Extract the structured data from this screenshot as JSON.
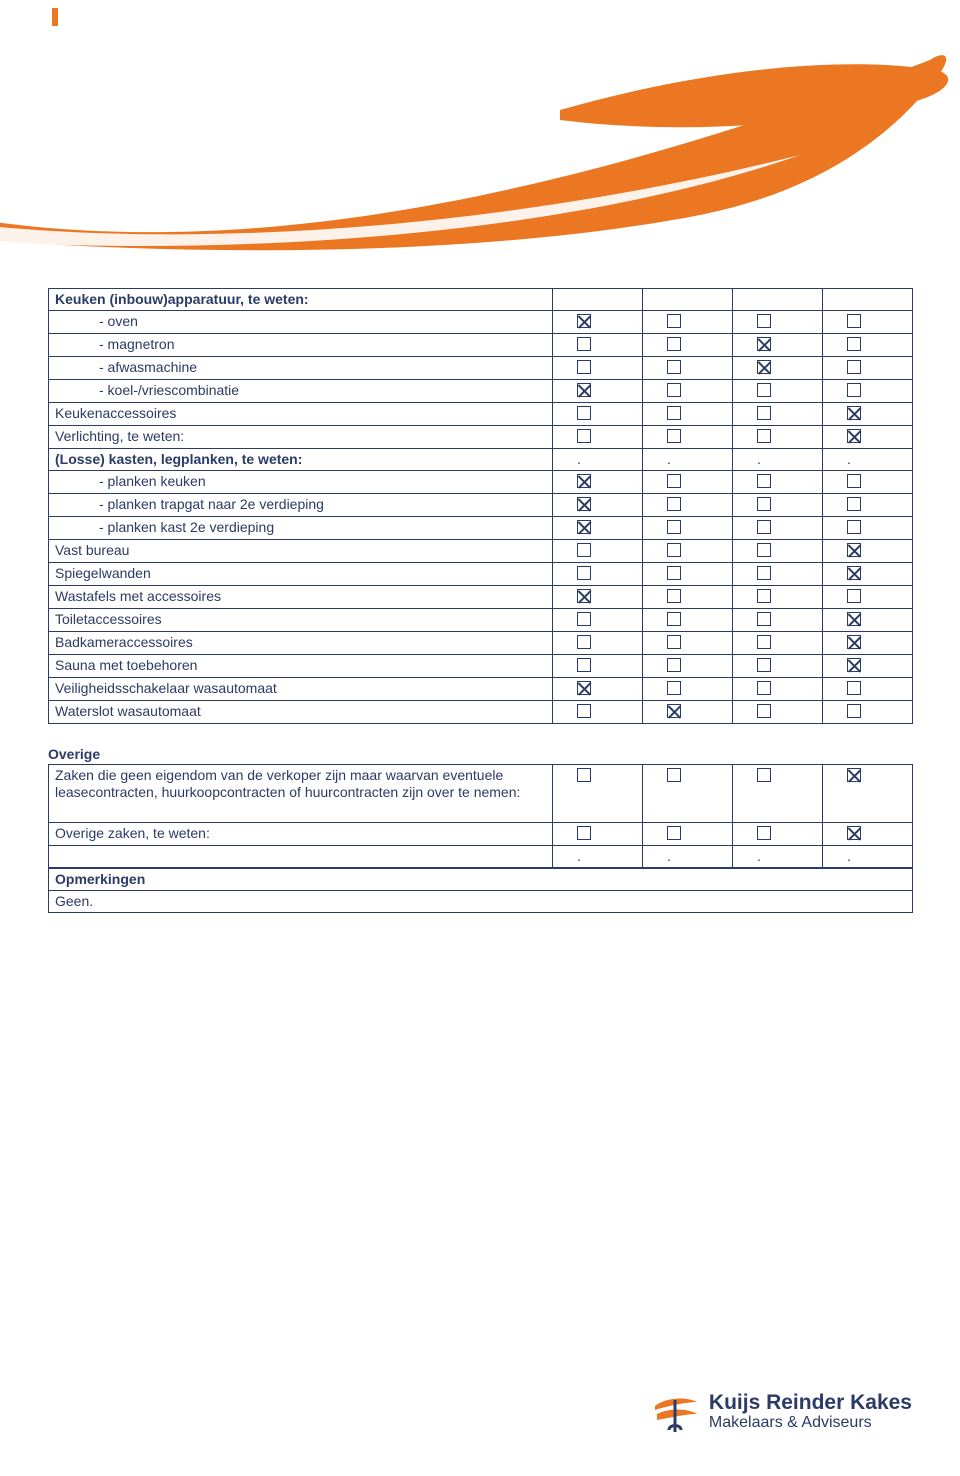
{
  "colors": {
    "brand_orange": "#ec7723",
    "brand_blue": "#2b3a67",
    "border": "#2b3a67",
    "background": "#ffffff"
  },
  "table1": {
    "header": "Keuken (inbouw)apparatuur, te weten:",
    "rows": [
      {
        "label": "- oven",
        "indent": true,
        "cells": [
          "checked",
          "empty",
          "empty",
          "empty"
        ]
      },
      {
        "label": "- magnetron",
        "indent": true,
        "cells": [
          "empty",
          "empty",
          "checked",
          "empty"
        ]
      },
      {
        "label": "- afwasmachine",
        "indent": true,
        "cells": [
          "empty",
          "empty",
          "checked",
          "empty"
        ]
      },
      {
        "label": "- koel-/vriescombinatie",
        "indent": true,
        "cells": [
          "checked",
          "empty",
          "empty",
          "empty"
        ]
      },
      {
        "label": "Keukenaccessoires",
        "indent": false,
        "cells": [
          "empty",
          "empty",
          "empty",
          "checked"
        ]
      },
      {
        "label": "Verlichting, te weten:",
        "indent": false,
        "cells": [
          "empty",
          "empty",
          "empty",
          "checked"
        ]
      },
      {
        "label": "(Losse) kasten, legplanken, te weten:",
        "indent": false,
        "bold": true,
        "cells": [
          "dot",
          "dot",
          "dot",
          "dot"
        ]
      },
      {
        "label": "- planken keuken",
        "indent": true,
        "cells": [
          "checked",
          "empty",
          "empty",
          "empty"
        ]
      },
      {
        "label": "- planken trapgat naar 2e verdieping",
        "indent": true,
        "cells": [
          "checked",
          "empty",
          "empty",
          "empty"
        ]
      },
      {
        "label": "- planken kast 2e verdieping",
        "indent": true,
        "cells": [
          "checked",
          "empty",
          "empty",
          "empty"
        ]
      },
      {
        "label": "Vast bureau",
        "indent": false,
        "cells": [
          "empty",
          "empty",
          "empty",
          "checked"
        ]
      },
      {
        "label": "Spiegelwanden",
        "indent": false,
        "cells": [
          "empty",
          "empty",
          "empty",
          "checked"
        ]
      },
      {
        "label": "Wastafels met accessoires",
        "indent": false,
        "cells": [
          "checked",
          "empty",
          "empty",
          "empty"
        ]
      },
      {
        "label": "Toiletaccessoires",
        "indent": false,
        "cells": [
          "empty",
          "empty",
          "empty",
          "checked"
        ]
      },
      {
        "label": "Badkameraccessoires",
        "indent": false,
        "cells": [
          "empty",
          "empty",
          "empty",
          "checked"
        ]
      },
      {
        "label": "Sauna met toebehoren",
        "indent": false,
        "cells": [
          "empty",
          "empty",
          "empty",
          "checked"
        ]
      },
      {
        "label": "Veiligheidsschakelaar wasautomaat",
        "indent": false,
        "cells": [
          "checked",
          "empty",
          "empty",
          "empty"
        ]
      },
      {
        "label": "Waterslot wasautomaat",
        "indent": false,
        "cells": [
          "empty",
          "checked",
          "empty",
          "empty"
        ]
      }
    ]
  },
  "section_overige": {
    "title": "Overige",
    "row_tall_label": "Zaken die geen eigendom van de verkoper zijn maar waarvan eventuele leasecontracten, huurkoopcontracten of huurcontracten zijn over te nemen:",
    "row_tall_cells": [
      "empty",
      "empty",
      "empty",
      "checked"
    ],
    "row2_label": "Overige zaken, te weten:",
    "row2_cells": [
      "empty",
      "empty",
      "empty",
      "checked"
    ],
    "row3_cells": [
      "dot",
      "dot",
      "dot",
      "dot"
    ]
  },
  "section_opmerkingen": {
    "title": "Opmerkingen",
    "value": "Geen."
  },
  "footer": {
    "brand_line1": "Kuijs Reinder Kakes",
    "brand_line2": "Makelaars & Adviseurs"
  }
}
